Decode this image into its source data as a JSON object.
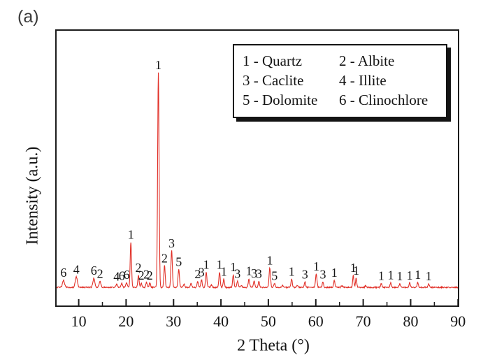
{
  "figure_label": "(a)",
  "axes": {
    "x_title": "2 Theta (°)",
    "y_title": "Intensity (a.u.)",
    "x_major_ticks": [
      10,
      20,
      30,
      40,
      50,
      60,
      70,
      80,
      90
    ],
    "x_minor_ticks": [
      15,
      25,
      35,
      45,
      55,
      65,
      75,
      85
    ]
  },
  "legend": {
    "rows": [
      [
        "1 - Quartz",
        "2 - Albite"
      ],
      [
        "3 - Caclite",
        "4 - Illite"
      ],
      [
        "5 - Dolomite",
        "6 - Clinochlore"
      ]
    ]
  },
  "chart_data": {
    "type": "line",
    "title": "",
    "xlabel": "2 Theta (°)",
    "ylabel": "Intensity (a.u.)",
    "x_range": [
      5.2,
      90.1
    ],
    "y_axis": "arbitrary units, strongest peak normalized to 100",
    "grid": false,
    "legend_position": "upper right",
    "trace_color": "#e13028",
    "frame_color": "#1c1c1c",
    "text_color": "#141414",
    "phases": {
      "1": "Quartz",
      "2": "Albite",
      "3": "Caclite",
      "4": "Illite",
      "5": "Dolomite",
      "6": "Clinochlore"
    },
    "peaks": [
      {
        "two_theta": 6.8,
        "intensity": 3.2,
        "label": "6",
        "sigma": 0.22
      },
      {
        "two_theta": 9.5,
        "intensity": 4.8,
        "label": "4",
        "sigma": 0.22
      },
      {
        "two_theta": 13.2,
        "intensity": 4.2,
        "label": "6",
        "sigma": 0.2
      },
      {
        "two_theta": 14.5,
        "intensity": 2.8,
        "label": "2",
        "sigma": 0.18
      },
      {
        "two_theta": 18.0,
        "intensity": 1.5,
        "label": "4",
        "sigma": 0.16
      },
      {
        "two_theta": 19.1,
        "intensity": 1.8,
        "label": "6",
        "sigma": 0.16
      },
      {
        "two_theta": 20.1,
        "intensity": 2.2,
        "label": "6",
        "sigma": 0.16
      },
      {
        "two_theta": 21.0,
        "intensity": 21.0,
        "label": "1",
        "sigma": 0.14
      },
      {
        "two_theta": 22.6,
        "intensity": 5.5,
        "label": "2",
        "sigma": 0.14
      },
      {
        "two_theta": 23.2,
        "intensity": 2.0,
        "label": "2",
        "sigma": 0.14
      },
      {
        "two_theta": 24.3,
        "intensity": 2.5,
        "label": "2",
        "sigma": 0.14
      },
      {
        "two_theta": 25.0,
        "intensity": 2.0,
        "label": "2",
        "sigma": 0.14
      },
      {
        "two_theta": 26.8,
        "intensity": 100.0,
        "label": "1",
        "sigma": 0.15
      },
      {
        "two_theta": 28.1,
        "intensity": 10.0,
        "label": "2",
        "sigma": 0.14
      },
      {
        "two_theta": 29.6,
        "intensity": 17.0,
        "label": "3",
        "sigma": 0.15
      },
      {
        "two_theta": 31.1,
        "intensity": 8.3,
        "label": "5",
        "sigma": 0.15
      },
      {
        "two_theta": 32.2,
        "intensity": 1.5,
        "label": "",
        "sigma": 0.15
      },
      {
        "two_theta": 33.7,
        "intensity": 1.8,
        "label": "",
        "sigma": 0.15
      },
      {
        "two_theta": 35.1,
        "intensity": 2.6,
        "label": "2",
        "sigma": 0.14
      },
      {
        "two_theta": 35.9,
        "intensity": 3.4,
        "label": "3",
        "sigma": 0.14
      },
      {
        "two_theta": 36.9,
        "intensity": 7.0,
        "label": "1",
        "sigma": 0.14
      },
      {
        "two_theta": 38.0,
        "intensity": 1.2,
        "label": "",
        "sigma": 0.14
      },
      {
        "two_theta": 39.7,
        "intensity": 7.0,
        "label": "1",
        "sigma": 0.14
      },
      {
        "two_theta": 40.6,
        "intensity": 3.8,
        "label": "1",
        "sigma": 0.14
      },
      {
        "two_theta": 42.6,
        "intensity": 5.8,
        "label": "1",
        "sigma": 0.14
      },
      {
        "two_theta": 43.5,
        "intensity": 2.8,
        "label": "3",
        "sigma": 0.14
      },
      {
        "two_theta": 44.3,
        "intensity": 1.0,
        "label": "",
        "sigma": 0.14
      },
      {
        "two_theta": 45.9,
        "intensity": 4.0,
        "label": "1",
        "sigma": 0.14
      },
      {
        "two_theta": 47.0,
        "intensity": 2.9,
        "label": "3",
        "sigma": 0.14
      },
      {
        "two_theta": 48.0,
        "intensity": 2.7,
        "label": "3",
        "sigma": 0.14
      },
      {
        "two_theta": 50.3,
        "intensity": 9.0,
        "label": "1",
        "sigma": 0.15
      },
      {
        "two_theta": 51.3,
        "intensity": 1.8,
        "label": "5",
        "sigma": 0.14
      },
      {
        "two_theta": 53.0,
        "intensity": 0.9,
        "label": "",
        "sigma": 0.14
      },
      {
        "two_theta": 54.9,
        "intensity": 3.8,
        "label": "1",
        "sigma": 0.14
      },
      {
        "two_theta": 56.1,
        "intensity": 0.8,
        "label": "",
        "sigma": 0.14
      },
      {
        "two_theta": 57.7,
        "intensity": 2.5,
        "label": "3",
        "sigma": 0.14
      },
      {
        "two_theta": 60.1,
        "intensity": 6.2,
        "label": "1",
        "sigma": 0.15
      },
      {
        "two_theta": 61.5,
        "intensity": 2.4,
        "label": "3",
        "sigma": 0.14
      },
      {
        "two_theta": 63.9,
        "intensity": 3.2,
        "label": "1",
        "sigma": 0.14
      },
      {
        "two_theta": 65.5,
        "intensity": 0.8,
        "label": "",
        "sigma": 0.14
      },
      {
        "two_theta": 67.9,
        "intensity": 5.5,
        "label": "1",
        "sigma": 0.13
      },
      {
        "two_theta": 68.5,
        "intensity": 4.2,
        "label": "1",
        "sigma": 0.13
      },
      {
        "two_theta": 70.5,
        "intensity": 0.7,
        "label": "",
        "sigma": 0.14
      },
      {
        "two_theta": 73.8,
        "intensity": 1.8,
        "label": "1",
        "sigma": 0.14
      },
      {
        "two_theta": 75.8,
        "intensity": 2.1,
        "label": "1",
        "sigma": 0.14
      },
      {
        "two_theta": 77.7,
        "intensity": 1.7,
        "label": "1",
        "sigma": 0.14
      },
      {
        "two_theta": 79.8,
        "intensity": 2.0,
        "label": "1",
        "sigma": 0.14
      },
      {
        "two_theta": 81.5,
        "intensity": 2.2,
        "label": "1",
        "sigma": 0.14
      },
      {
        "two_theta": 83.8,
        "intensity": 1.6,
        "label": "1",
        "sigma": 0.14
      }
    ]
  }
}
